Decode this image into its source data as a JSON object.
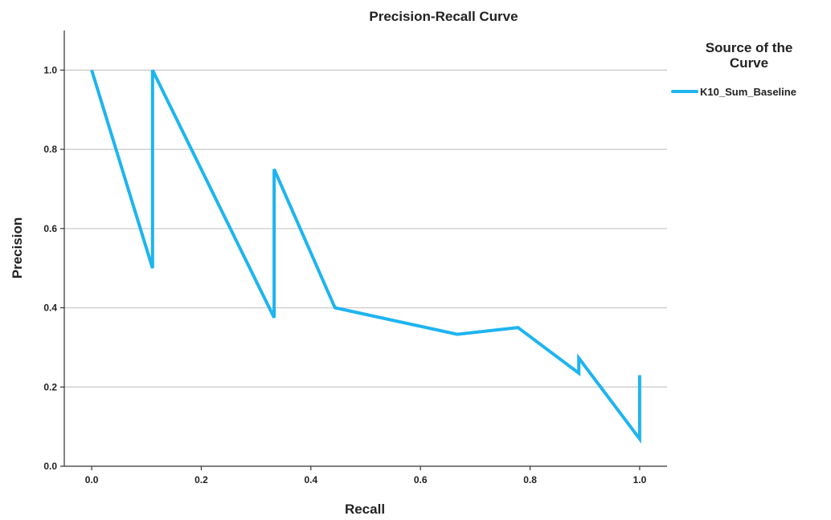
{
  "chart_data": {
    "type": "line",
    "title": "Precision-Recall Curve",
    "xlabel": "Recall",
    "ylabel": "Precision",
    "xlim": [
      -0.05,
      1.05
    ],
    "ylim": [
      0.0,
      1.1
    ],
    "x_ticks": [
      "0.0",
      "0.2",
      "0.4",
      "0.6",
      "0.8",
      "1.0"
    ],
    "x_tick_values": [
      0.0,
      0.2,
      0.4,
      0.6,
      0.8,
      1.0
    ],
    "y_ticks": [
      "0.0",
      "0.2",
      "0.4",
      "0.6",
      "0.8",
      "1.0"
    ],
    "y_tick_values": [
      0.0,
      0.2,
      0.4,
      0.6,
      0.8,
      1.0
    ],
    "grid": "horizontal",
    "legend": {
      "title_lines": [
        "Source of the",
        "Curve"
      ],
      "placement": "top-right"
    },
    "series": [
      {
        "name": "K10_Sum_Baseline",
        "color": "#1eb4f0",
        "x": [
          0.0,
          0.111,
          0.111,
          0.333,
          0.333,
          0.444,
          0.667,
          0.778,
          0.889,
          0.889,
          1.0,
          1.0
        ],
        "y": [
          1.0,
          0.5,
          1.0,
          0.375,
          0.75,
          0.4,
          0.333,
          0.35,
          0.235,
          0.273,
          0.069,
          0.23
        ]
      }
    ]
  }
}
